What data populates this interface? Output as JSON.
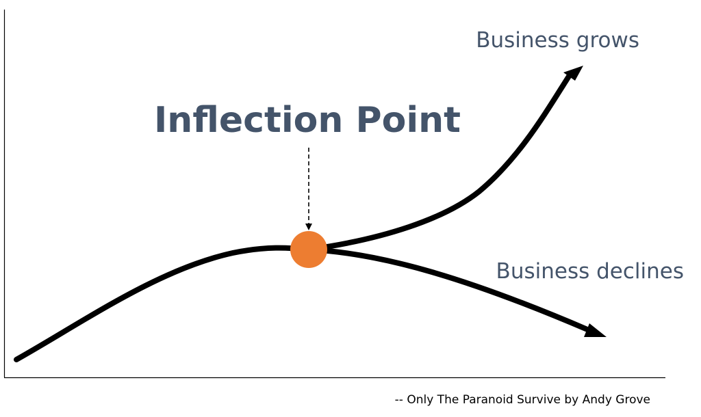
{
  "title": "Inflection Point",
  "labels": {
    "grows": "Business grows",
    "declines": "Business declines"
  },
  "attribution": "-- Only The Paranoid Survive by Andy Grove",
  "colors": {
    "text": "#44546a",
    "curve": "#000000",
    "axis": "#000000",
    "inflection_point": "#ed7d31"
  },
  "icons": {
    "pointer": "dashed-down-arrow",
    "grows_arrowhead": "arrowhead-up-right",
    "declines_arrowhead": "arrowhead-down-right"
  }
}
